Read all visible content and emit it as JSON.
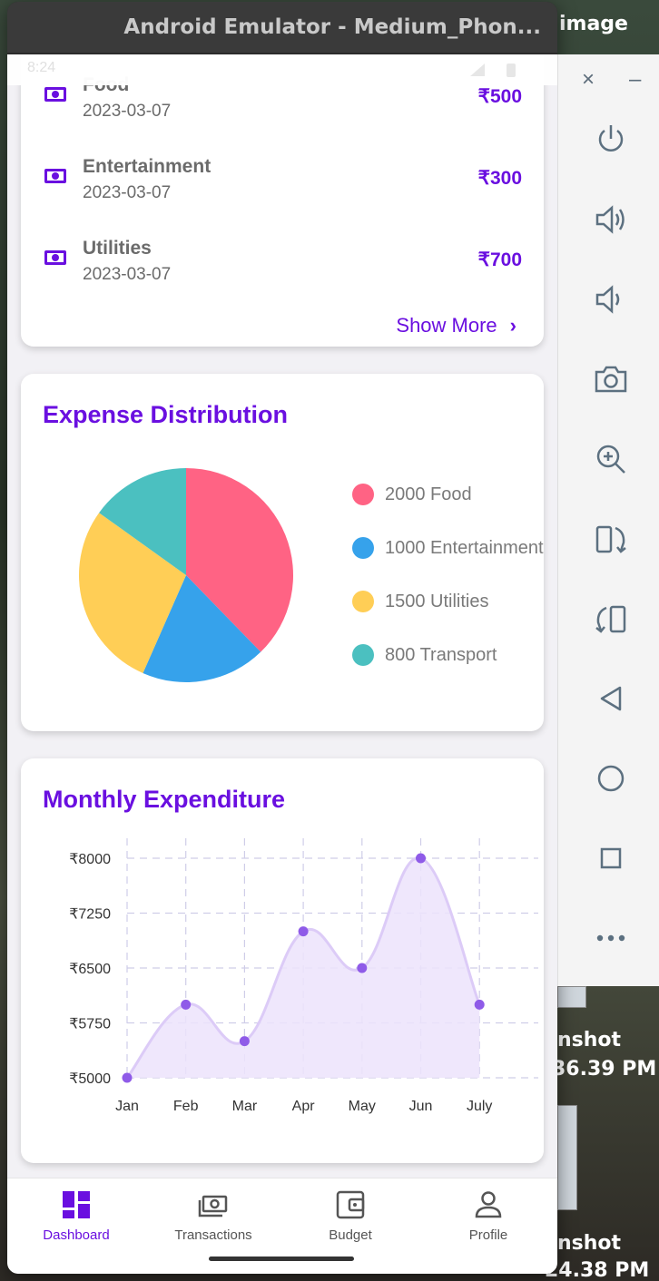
{
  "colors": {
    "accent": "#6a0fe0",
    "food": "#ff6384",
    "entertainment": "#36a2eb",
    "utilities": "#ffce56",
    "transport": "#4bc0c0",
    "line": "#8f5be8",
    "area": "#ece3fb"
  },
  "desktop": {
    "label_image": "image",
    "label_shot1": "nshot",
    "label_time1": "36.39 PM",
    "label_shot2": "nshot",
    "label_time2": "24.38 PM"
  },
  "window": {
    "title": "Android Emulator - Medium_Phon..."
  },
  "status_bar": {
    "time": "8:24"
  },
  "recent_transactions": {
    "items": [
      {
        "name": "Food",
        "date": "2023-03-07",
        "amount": "₹500",
        "icon": "money-icon"
      },
      {
        "name": "Entertainment",
        "date": "2023-03-07",
        "amount": "₹300",
        "icon": "money-icon"
      },
      {
        "name": "Utilities",
        "date": "2023-03-07",
        "amount": "₹700",
        "icon": "money-icon"
      }
    ],
    "show_more": "Show More"
  },
  "expense_distribution": {
    "title": "Expense Distribution",
    "legend": [
      "2000 Food",
      "1000 Entertainment",
      "1500 Utilities",
      "800 Transport"
    ]
  },
  "monthly_expenditure": {
    "title": "Monthly Expenditure"
  },
  "chart_data": [
    {
      "type": "pie",
      "title": "Expense Distribution",
      "categories": [
        "Food",
        "Entertainment",
        "Utilities",
        "Transport"
      ],
      "values": [
        2000,
        1000,
        1500,
        800
      ],
      "colors": [
        "#ff6384",
        "#36a2eb",
        "#ffce56",
        "#4bc0c0"
      ],
      "legend": "right"
    },
    {
      "type": "area",
      "title": "Monthly Expenditure",
      "categories": [
        "Jan",
        "Feb",
        "Mar",
        "Apr",
        "May",
        "Jun",
        "July"
      ],
      "values": [
        5000,
        6000,
        5500,
        7000,
        6500,
        8000,
        6000
      ],
      "ylim": [
        5000,
        8000
      ],
      "yticks": [
        "₹5000",
        "₹5750",
        "₹6500",
        "₹7250",
        "₹8000"
      ],
      "grid": true
    }
  ],
  "bottom_nav": {
    "items": [
      {
        "label": "Dashboard",
        "icon": "dashboard-icon",
        "active": true
      },
      {
        "label": "Transactions",
        "icon": "transactions-icon",
        "active": false
      },
      {
        "label": "Budget",
        "icon": "budget-icon",
        "active": false
      },
      {
        "label": "Profile",
        "icon": "profile-icon",
        "active": false
      }
    ]
  },
  "side_panel": {
    "close": "×",
    "minimize": "–",
    "buttons": [
      "power-icon",
      "volume-up-icon",
      "volume-down-icon",
      "camera-icon",
      "zoom-icon",
      "rotate-right-icon",
      "rotate-left-icon",
      "back-icon",
      "home-icon",
      "overview-icon",
      "more-icon"
    ]
  }
}
